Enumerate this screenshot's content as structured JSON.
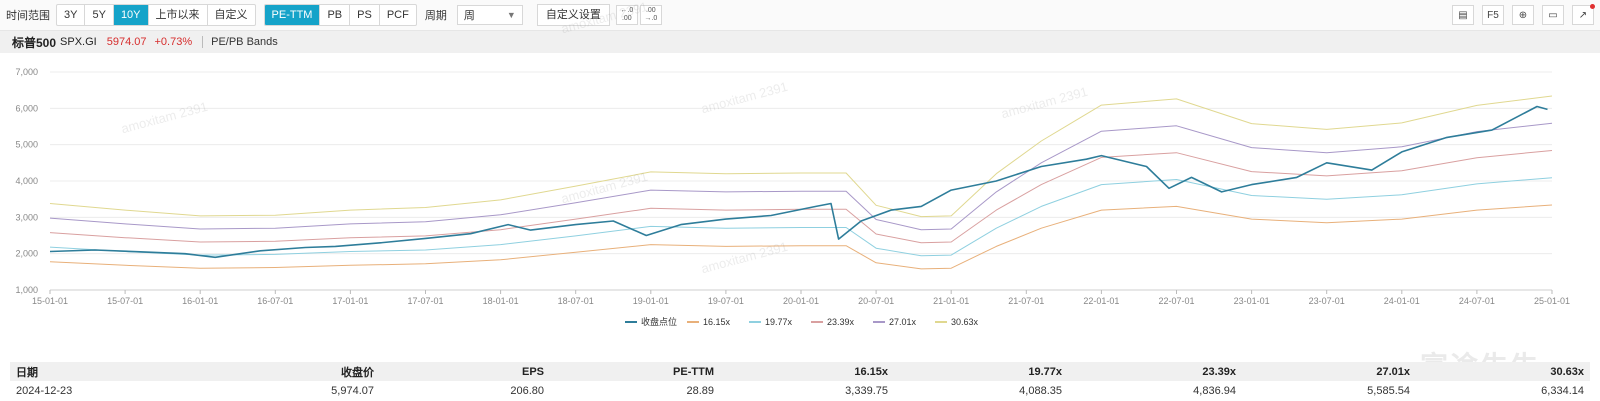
{
  "toolbar": {
    "range_label": "时间范围",
    "ranges": [
      "3Y",
      "5Y",
      "10Y",
      "上市以来",
      "自定义"
    ],
    "active_range": "10Y",
    "metrics": [
      "PE-TTM",
      "PB",
      "PS",
      "PCF"
    ],
    "active_metric": "PE-TTM",
    "period_label": "周期",
    "period_value": "周",
    "custom_settings": "自定义设置",
    "right_f5": "F5"
  },
  "header": {
    "name": "标普500",
    "code": "SPX.GI",
    "price": "5974.07",
    "change": "+0.73%",
    "title": "PE/PB Bands"
  },
  "watermark": "amoxitam 2391",
  "brand": "富途牛牛",
  "chart_data": {
    "type": "line",
    "x_ticks": [
      "15-01-01",
      "15-07-01",
      "16-01-01",
      "16-07-01",
      "17-01-01",
      "17-07-01",
      "18-01-01",
      "18-07-01",
      "19-01-01",
      "19-07-01",
      "20-01-01",
      "20-07-01",
      "21-01-01",
      "21-07-01",
      "22-01-01",
      "22-07-01",
      "23-01-01",
      "23-07-01",
      "24-01-01",
      "24-07-01",
      "25-01-01"
    ],
    "y_ticks": [
      "1,000",
      "2,000",
      "3,000",
      "4,000",
      "5,000",
      "6,000",
      "7,000"
    ],
    "ylim": [
      1000,
      7000
    ],
    "xlim": [
      2015.0,
      2025.0
    ],
    "legend_position": "bottom",
    "series": [
      {
        "name": "收盘点位",
        "color": "#2e7d9a",
        "width": 1.6,
        "x": [
          2015.0,
          2015.3,
          2015.6,
          2015.9,
          2016.1,
          2016.4,
          2016.7,
          2016.9,
          2017.2,
          2017.5,
          2017.8,
          2018.05,
          2018.2,
          2018.5,
          2018.75,
          2018.97,
          2019.2,
          2019.5,
          2019.8,
          2020.1,
          2020.2,
          2020.25,
          2020.4,
          2020.6,
          2020.8,
          2021.0,
          2021.3,
          2021.6,
          2021.9,
          2022.0,
          2022.3,
          2022.45,
          2022.6,
          2022.8,
          2023.0,
          2023.3,
          2023.5,
          2023.8,
          2024.0,
          2024.3,
          2024.6,
          2024.9,
          2024.97
        ],
        "y": [
          2060,
          2100,
          2050,
          2000,
          1900,
          2080,
          2170,
          2200,
          2300,
          2420,
          2550,
          2800,
          2650,
          2800,
          2900,
          2500,
          2800,
          2950,
          3050,
          3300,
          3380,
          2400,
          2900,
          3200,
          3300,
          3750,
          4000,
          4400,
          4600,
          4700,
          4400,
          3800,
          4100,
          3700,
          3900,
          4100,
          4500,
          4300,
          4800,
          5200,
          5400,
          6050,
          5970
        ]
      },
      {
        "name": "16.15x",
        "color": "#e8b07a",
        "width": 1,
        "x": [
          2015.0,
          2015.5,
          2016.0,
          2016.5,
          2017.0,
          2017.5,
          2018.0,
          2018.5,
          2019.0,
          2019.5,
          2020.0,
          2020.3,
          2020.5,
          2020.8,
          2021.0,
          2021.3,
          2021.6,
          2022.0,
          2022.5,
          2023.0,
          2023.5,
          2024.0,
          2024.5,
          2025.0
        ],
        "y": [
          1780,
          1680,
          1600,
          1620,
          1680,
          1720,
          1830,
          2040,
          2250,
          2200,
          2220,
          2220,
          1750,
          1580,
          1600,
          2200,
          2700,
          3200,
          3300,
          2950,
          2850,
          2950,
          3200,
          3340
        ]
      },
      {
        "name": "19.77x",
        "color": "#8fd0e0",
        "width": 1,
        "x": [
          2015.0,
          2015.5,
          2016.0,
          2016.5,
          2017.0,
          2017.5,
          2018.0,
          2018.5,
          2019.0,
          2019.5,
          2020.0,
          2020.3,
          2020.5,
          2020.8,
          2021.0,
          2021.3,
          2021.6,
          2022.0,
          2022.5,
          2023.0,
          2023.5,
          2024.0,
          2024.5,
          2025.0
        ],
        "y": [
          2180,
          2060,
          1960,
          1980,
          2060,
          2100,
          2250,
          2490,
          2750,
          2700,
          2720,
          2720,
          2150,
          1940,
          1960,
          2700,
          3300,
          3900,
          4040,
          3600,
          3500,
          3620,
          3920,
          4090
        ]
      },
      {
        "name": "23.39x",
        "color": "#d9a0a0",
        "width": 1,
        "x": [
          2015.0,
          2015.5,
          2016.0,
          2016.5,
          2017.0,
          2017.5,
          2018.0,
          2018.5,
          2019.0,
          2019.5,
          2020.0,
          2020.3,
          2020.5,
          2020.8,
          2021.0,
          2021.3,
          2021.6,
          2022.0,
          2022.5,
          2023.0,
          2023.5,
          2024.0,
          2024.5,
          2025.0
        ],
        "y": [
          2580,
          2440,
          2320,
          2340,
          2440,
          2490,
          2660,
          2950,
          3250,
          3200,
          3220,
          3220,
          2540,
          2300,
          2320,
          3200,
          3900,
          4650,
          4780,
          4260,
          4140,
          4280,
          4640,
          4840
        ]
      },
      {
        "name": "27.01x",
        "color": "#a898c8",
        "width": 1,
        "x": [
          2015.0,
          2015.5,
          2016.0,
          2016.5,
          2017.0,
          2017.5,
          2018.0,
          2018.5,
          2019.0,
          2019.5,
          2020.0,
          2020.3,
          2020.5,
          2020.8,
          2021.0,
          2021.3,
          2021.6,
          2022.0,
          2022.5,
          2023.0,
          2023.5,
          2024.0,
          2024.5,
          2025.0
        ],
        "y": [
          2980,
          2820,
          2680,
          2700,
          2820,
          2880,
          3070,
          3400,
          3750,
          3700,
          3720,
          3720,
          2940,
          2660,
          2680,
          3700,
          4500,
          5370,
          5520,
          4920,
          4780,
          4940,
          5360,
          5590
        ]
      },
      {
        "name": "30.63x",
        "color": "#e0d890",
        "width": 1,
        "x": [
          2015.0,
          2015.5,
          2016.0,
          2016.5,
          2017.0,
          2017.5,
          2018.0,
          2018.5,
          2019.0,
          2019.5,
          2020.0,
          2020.3,
          2020.5,
          2020.8,
          2021.0,
          2021.3,
          2021.6,
          2022.0,
          2022.5,
          2023.0,
          2023.5,
          2024.0,
          2024.5,
          2025.0
        ],
        "y": [
          3380,
          3200,
          3040,
          3060,
          3200,
          3270,
          3480,
          3860,
          4250,
          4200,
          4220,
          4220,
          3330,
          3020,
          3040,
          4200,
          5100,
          6090,
          6260,
          5580,
          5420,
          5600,
          6080,
          6340
        ]
      }
    ]
  },
  "table": {
    "headers": [
      "日期",
      "收盘价",
      "EPS",
      "PE-TTM",
      "16.15x",
      "19.77x",
      "23.39x",
      "27.01x",
      "30.63x"
    ],
    "row": [
      "2024-12-23",
      "5,974.07",
      "206.80",
      "28.89",
      "3,339.75",
      "4,088.35",
      "4,836.94",
      "5,585.54",
      "6,334.14"
    ]
  }
}
